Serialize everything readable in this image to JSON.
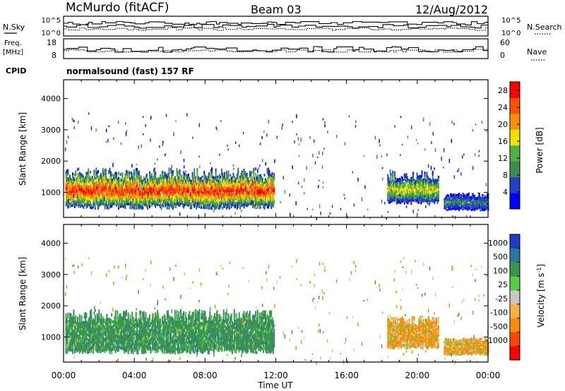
{
  "header": {
    "station": "McMurdo (fitACF)",
    "beam": "Beam 03",
    "date": "12/Aug/2012"
  },
  "noise_panel": {
    "left_label": "N.Sky",
    "right_label": "N.Search",
    "left_ticks": [
      "10^5",
      "10^0"
    ],
    "right_ticks": [
      "10^5",
      "10^0"
    ]
  },
  "freq_panel": {
    "left_label_line1": "Freq.",
    "left_label_line2": "[MHz]",
    "right_label": "Nave",
    "left_ticks": [
      "18",
      "8"
    ],
    "right_ticks": [
      "60",
      "0"
    ]
  },
  "cpid": {
    "label": "CPID",
    "value": "normalsound (fast) 157 RF"
  },
  "x_axis": {
    "title": "Time UT",
    "ticks": [
      "00:00",
      "04:00",
      "08:00",
      "12:00",
      "16:00",
      "20:00",
      "00:00"
    ]
  },
  "colors": {
    "power_scale": [
      "#0000ff",
      "#2040c8",
      "#3c8c50",
      "#50b040",
      "#f0e000",
      "#ff9000",
      "#ff5000",
      "#ff0000"
    ],
    "velocity_scale": [
      "#ff0000",
      "#ff4500",
      "#ff8c00",
      "#ffb040",
      "#c8c8c8",
      "#50d040",
      "#3c9450",
      "#2a78a0",
      "#1e3cc8"
    ]
  },
  "chart_data": [
    {
      "type": "heatmap",
      "title": "",
      "ylabel": "Slant Range [km]",
      "xlabel": "",
      "y_ticks": [
        "1000",
        "2000",
        "3000",
        "4000"
      ],
      "ylim": [
        200,
        4600
      ],
      "xlim_hours": [
        0,
        24
      ],
      "colorbar": {
        "label": "Power [dB]",
        "ticks": [
          "4",
          "8",
          "12",
          "16",
          "20",
          "24",
          "28"
        ],
        "range": [
          0,
          30
        ]
      },
      "description_regions": [
        {
          "t_start": 0.1,
          "t_end": 11.9,
          "range_km": [
            450,
            1800
          ],
          "peak_db": 28
        },
        {
          "t_start": 18.3,
          "t_end": 21.2,
          "range_km": [
            600,
            1700
          ],
          "peak_db": 18
        },
        {
          "t_start": 21.5,
          "t_end": 24.0,
          "range_km": [
            400,
            1000
          ],
          "peak_db": 10
        }
      ]
    },
    {
      "type": "heatmap",
      "title": "",
      "ylabel": "Slant Range [km]",
      "xlabel": "Time UT",
      "y_ticks": [
        "1000",
        "2000",
        "3000",
        "4000"
      ],
      "ylim": [
        200,
        4600
      ],
      "xlim_hours": [
        0,
        24
      ],
      "colorbar": {
        "label": "Velocity [m s-1]",
        "label_main": "Velocity [m s",
        "label_sup": "-1",
        "label_end": "]",
        "ticks": [
          "1000",
          "500",
          "100",
          "25",
          "-25",
          "-100",
          "-500",
          "-1000"
        ],
        "range": [
          -1000,
          1000
        ]
      },
      "description_regions": [
        {
          "t_start": 0.1,
          "t_end": 11.9,
          "range_km": [
            450,
            1900
          ],
          "dominant_velocity": 300
        },
        {
          "t_start": 18.3,
          "t_end": 21.2,
          "range_km": [
            600,
            1700
          ],
          "dominant_velocity": -150
        },
        {
          "t_start": 21.5,
          "t_end": 24.0,
          "range_km": [
            400,
            1000
          ],
          "dominant_velocity": -150
        }
      ]
    }
  ]
}
